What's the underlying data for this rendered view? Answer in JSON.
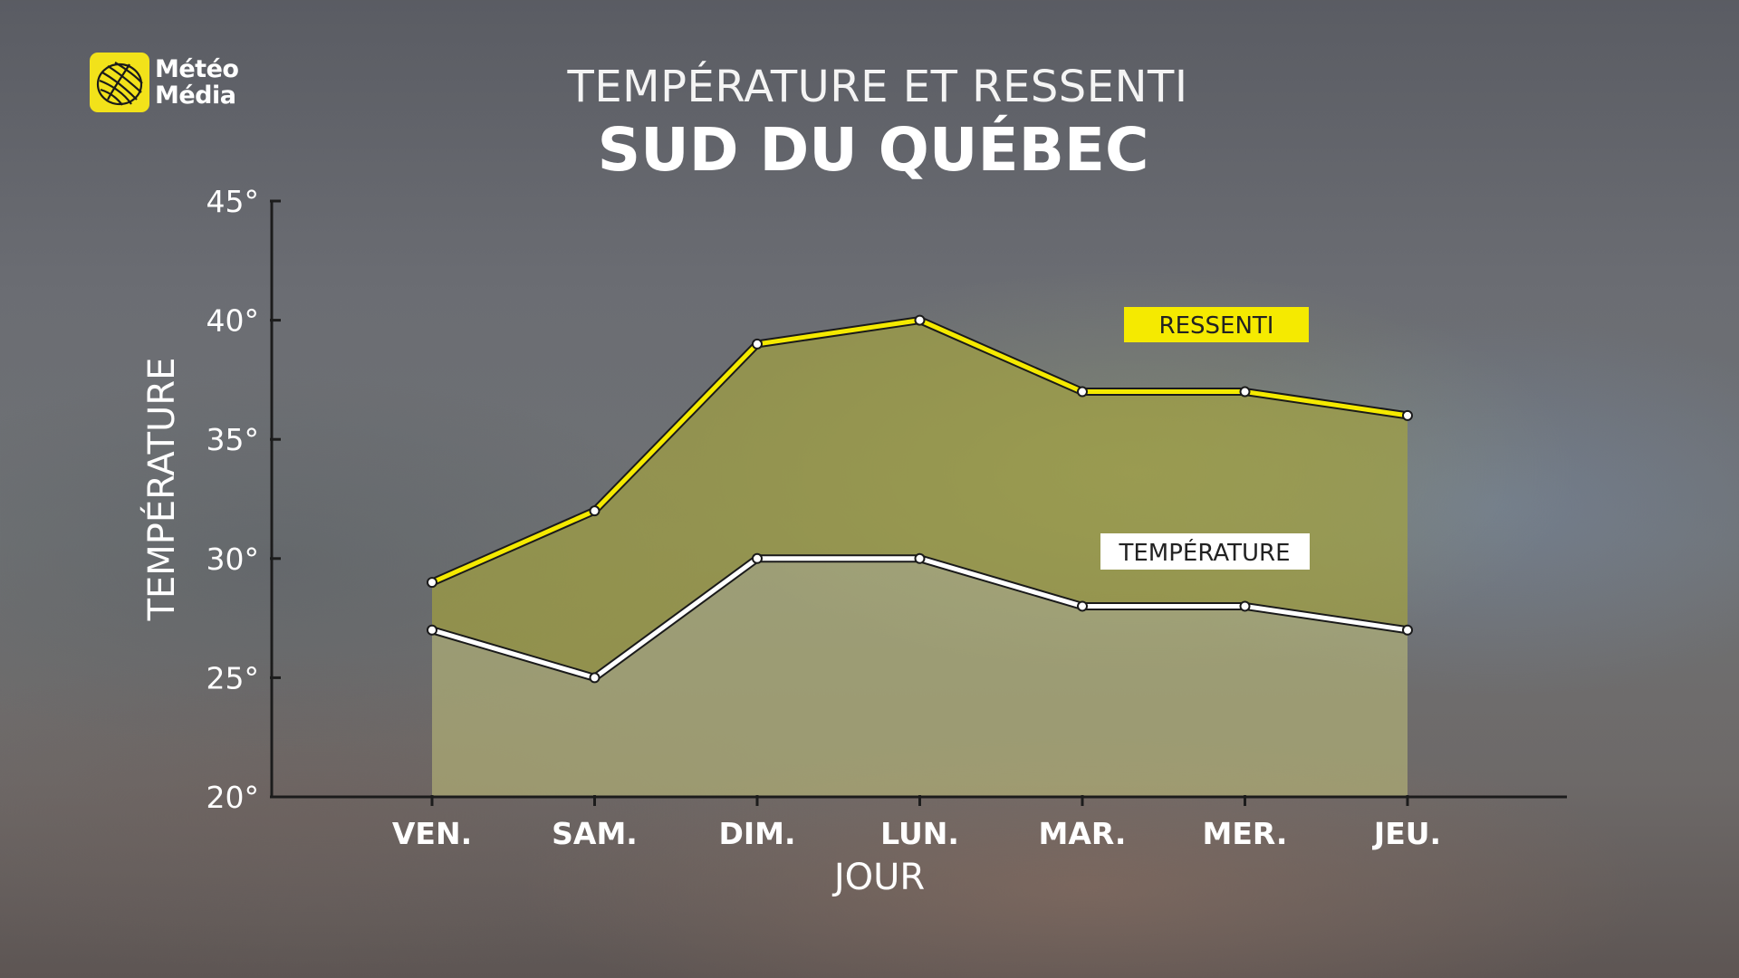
{
  "logo": {
    "line1": "Météo",
    "line2": "Média"
  },
  "title": "TEMPÉRATURE ET RESSENTI",
  "subtitle": "SUD DU QUÉBEC",
  "colors": {
    "ressenti": "#f5ea00",
    "temperature": "#ffffff",
    "fill": "#b8b53a",
    "axis": "#1c1c1c",
    "logo": "#f2e21a"
  },
  "icons": {
    "logo": "globe-logo-icon"
  },
  "chart_data": {
    "type": "area",
    "title": "TEMPÉRATURE ET RESSENTI",
    "subtitle": "SUD DU QUÉBEC",
    "xlabel": "JOUR",
    "ylabel": "TEMPÉRATURE",
    "categories": [
      "VEN.",
      "SAM.",
      "DIM.",
      "LUN.",
      "MAR.",
      "MER.",
      "JEU."
    ],
    "ylim": [
      20,
      45
    ],
    "yticks": [
      20,
      25,
      30,
      35,
      40,
      45
    ],
    "ytick_labels": [
      "20°",
      "25°",
      "30°",
      "35°",
      "40°",
      "45°"
    ],
    "series": [
      {
        "name": "RESSENTI",
        "values": [
          29,
          32,
          39,
          40,
          37,
          37,
          36
        ],
        "color": "#f5ea00"
      },
      {
        "name": "TEMPÉRATURE",
        "values": [
          27,
          25,
          30,
          30,
          28,
          28,
          27
        ],
        "color": "#ffffff"
      }
    ],
    "grid": false,
    "legend": "inline labels"
  }
}
